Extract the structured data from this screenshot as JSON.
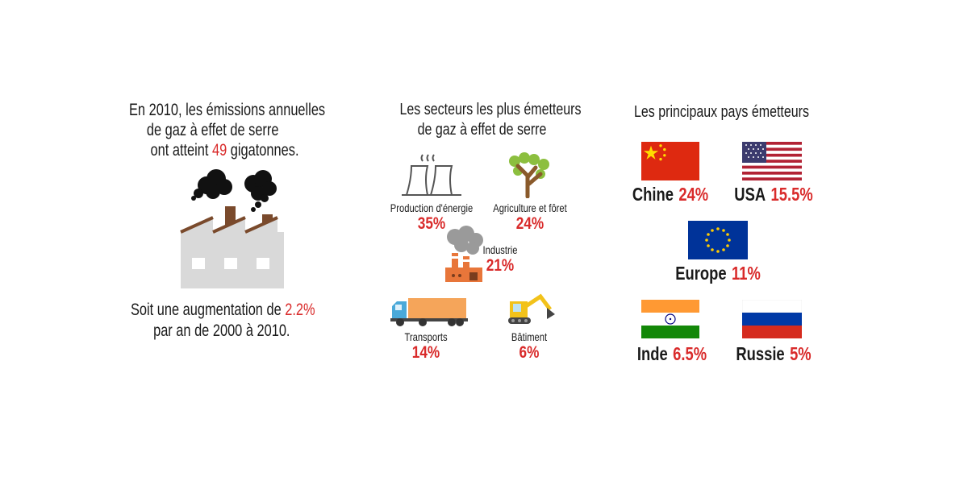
{
  "emissions": {
    "line1": "En 2010, les émissions annuelles",
    "line2": "de gaz à effet de serre",
    "line3_before": "ont atteint ",
    "line3_value": "49",
    "line3_after": " gigatonnes.",
    "foot_line1_before": "Soit une augmentation de ",
    "foot_line1_value": "2.2%",
    "foot_line2": "par an de 2000 à 2010."
  },
  "sectors": {
    "title_line1": "Les secteurs les plus émetteurs",
    "title_line2": "de gaz à effet de serre",
    "items": [
      {
        "label": "Production d'énergie",
        "pct": "35%"
      },
      {
        "label": "Agriculture et fôret",
        "pct": "24%"
      },
      {
        "label": "Industrie",
        "pct": "21%"
      },
      {
        "label": "Transports",
        "pct": "14%"
      },
      {
        "label": "Bâtiment",
        "pct": "6%"
      }
    ]
  },
  "countries": {
    "title": "Les principaux pays émetteurs",
    "items": [
      {
        "name": "Chine",
        "pct": "24%",
        "icon": "china-flag-icon"
      },
      {
        "name": "USA",
        "pct": "15.5%",
        "icon": "usa-flag-icon"
      },
      {
        "name": "Europe",
        "pct": "11%",
        "icon": "eu-flag-icon"
      },
      {
        "name": "Inde",
        "pct": "6.5%",
        "icon": "india-flag-icon"
      },
      {
        "name": "Russie",
        "pct": "5%",
        "icon": "russia-flag-icon"
      }
    ]
  },
  "colors": {
    "accent": "#d92b2b",
    "factory": "#d9d9d9",
    "chimney": "#7a4a2c"
  }
}
